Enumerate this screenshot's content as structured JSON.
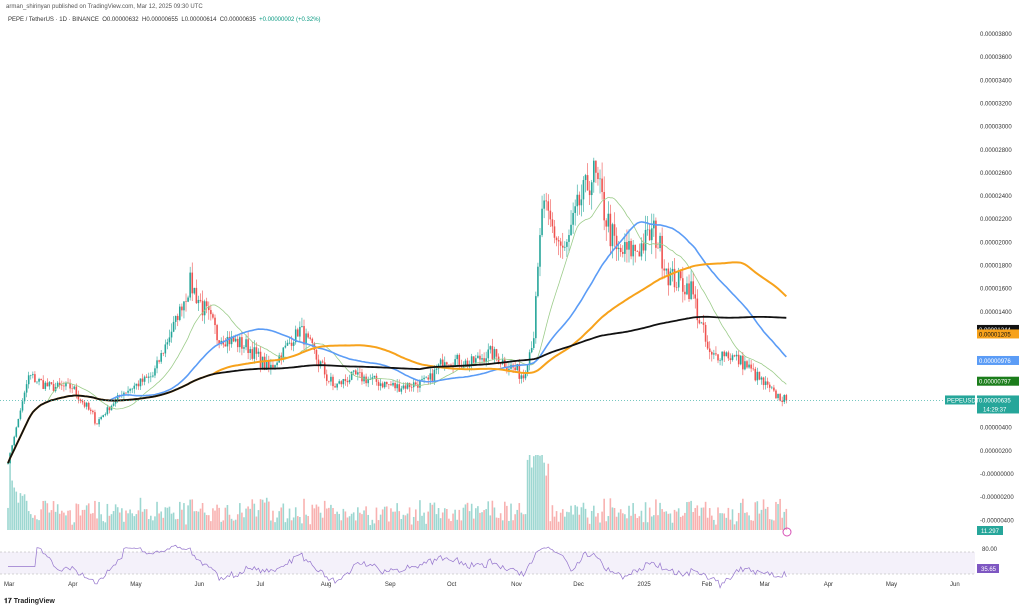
{
  "header": {
    "published": "arman_shirinyan published on TradingView.com, Mar 12, 2025 09:30 UTC",
    "symbol": "PEPE / TetherUS · 1D · BINANCE",
    "o": "O0.00000632",
    "h": "H0.00000655",
    "l": "L0.00000614",
    "c": "C0.00000635",
    "chg": "+0.00000002 (+0.32%)"
  },
  "footer": {
    "logo": "TradingView"
  },
  "colors": {
    "up": "#26a69a",
    "down": "#ef5350",
    "ma_fast": "#9ccc8a",
    "ma_blue": "#5b9cf6",
    "ma_orange": "#f7a21b",
    "ma_black": "#111111",
    "rsi": "#9575cd"
  },
  "chart_data": {
    "type": "candlestick",
    "symbol_label": "PEPEUSDT",
    "y_ticks": [
      "0.00003800",
      "0.00003600",
      "0.00003400",
      "0.00003200",
      "0.00003000",
      "0.00002800",
      "0.00002600",
      "0.00002400",
      "0.00002200",
      "0.00002000",
      "0.00001800",
      "0.00001600",
      "0.00001400",
      "0.00000400",
      "0.00000200",
      "-0.00000000",
      "-0.00000200",
      "-0.00000400"
    ],
    "x_ticks": [
      "Mar",
      "Apr",
      "May",
      "Jun",
      "Jul",
      "Aug",
      "Sep",
      "Oct",
      "Nov",
      "Dec",
      "2025",
      "Feb",
      "Mar",
      "Apr",
      "May",
      "Jun"
    ],
    "approx_closes_1e8": [
      [
        0,
        100
      ],
      [
        10,
        850
      ],
      [
        20,
        750
      ],
      [
        31,
        750
      ],
      [
        43,
        450
      ],
      [
        55,
        700
      ],
      [
        70,
        850
      ],
      [
        85,
        1500
      ],
      [
        88,
        1650
      ],
      [
        101,
        1200
      ],
      [
        116,
        1100
      ],
      [
        126,
        900
      ],
      [
        141,
        1250
      ],
      [
        157,
        750
      ],
      [
        167,
        850
      ],
      [
        188,
        750
      ],
      [
        203,
        800
      ],
      [
        211,
        1000
      ],
      [
        223,
        950
      ],
      [
        233,
        1050
      ],
      [
        249,
        850
      ],
      [
        254,
        1200
      ],
      [
        258,
        2300
      ],
      [
        269,
        1900
      ],
      [
        275,
        2300
      ],
      [
        283,
        2600
      ],
      [
        294,
        1900
      ],
      [
        305,
        1950
      ],
      [
        312,
        2100
      ],
      [
        320,
        1700
      ],
      [
        330,
        1600
      ],
      [
        339,
        1000
      ],
      [
        346,
        1050
      ],
      [
        356,
        950
      ],
      [
        369,
        700
      ],
      [
        376,
        635
      ]
    ],
    "price_labels": [
      {
        "name": "ma-black",
        "value": "0.00001244"
      },
      {
        "name": "ma-orange",
        "value": "0.00001205"
      },
      {
        "name": "ma-blue",
        "value": "0.00000976"
      },
      {
        "name": "ma-green",
        "value": "0.00000797"
      },
      {
        "name": "last",
        "value": "0.00000635",
        "countdown": "14:29:37"
      }
    ],
    "volume_label": "11.297",
    "rsi": {
      "value": "35.65",
      "upper": "80.00"
    }
  }
}
